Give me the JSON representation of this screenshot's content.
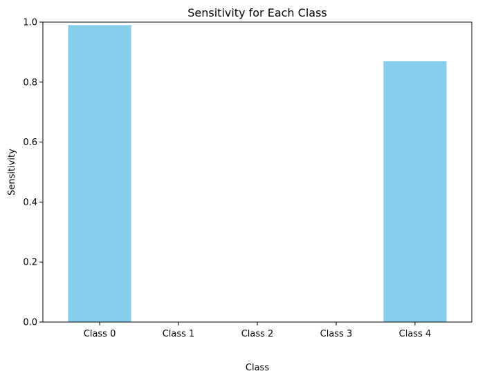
{
  "chart_data": {
    "type": "bar",
    "title": "Sensitivity for Each Class",
    "xlabel": "Class",
    "ylabel": "Sensitivity",
    "categories": [
      "Class 0",
      "Class 1",
      "Class 2",
      "Class 3",
      "Class 4"
    ],
    "values": [
      0.99,
      0.0,
      0.0,
      0.0,
      0.87
    ],
    "ylim": [
      0,
      1.0
    ],
    "yticks": [
      "0.0",
      "0.2",
      "0.4",
      "0.6",
      "0.8",
      "1.0"
    ],
    "bar_color": "#87ceeb",
    "grid": false,
    "legend": "none"
  }
}
